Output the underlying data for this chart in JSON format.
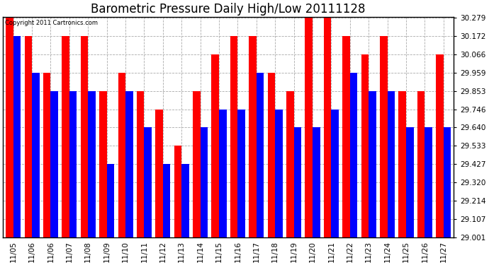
{
  "title": "Barometric Pressure Daily High/Low 20111128",
  "copyright": "Copyright 2011 Cartronics.com",
  "dates": [
    "11/05",
    "11/06",
    "11/06",
    "11/07",
    "11/08",
    "11/09",
    "11/10",
    "11/11",
    "11/12",
    "11/13",
    "11/14",
    "11/15",
    "11/16",
    "11/17",
    "11/18",
    "11/19",
    "11/20",
    "11/21",
    "11/22",
    "11/23",
    "11/24",
    "11/25",
    "11/26",
    "11/27"
  ],
  "highs": [
    30.279,
    30.172,
    29.96,
    30.172,
    30.172,
    29.853,
    29.96,
    29.853,
    29.746,
    29.533,
    29.853,
    30.066,
    30.172,
    30.172,
    29.96,
    29.853,
    30.279,
    30.279,
    30.172,
    30.066,
    30.172,
    29.853,
    29.853,
    30.066
  ],
  "lows": [
    30.172,
    29.959,
    29.853,
    29.853,
    29.853,
    29.427,
    29.853,
    29.64,
    29.427,
    29.427,
    29.64,
    29.746,
    29.746,
    29.959,
    29.746,
    29.64,
    29.64,
    29.746,
    29.959,
    29.853,
    29.853,
    29.64,
    29.64,
    29.64
  ],
  "high_color": "#ff0000",
  "low_color": "#0000ff",
  "bg_color": "#ffffff",
  "plot_bg_color": "#ffffff",
  "grid_color": "#aaaaaa",
  "ymin": 29.001,
  "ymax": 30.279,
  "yticks": [
    29.001,
    29.107,
    29.214,
    29.32,
    29.427,
    29.533,
    29.64,
    29.746,
    29.853,
    29.959,
    30.066,
    30.172,
    30.279
  ],
  "bar_width": 0.4,
  "title_fontsize": 12,
  "tick_fontsize": 7.5,
  "figwidth": 6.9,
  "figheight": 3.75,
  "dpi": 100
}
